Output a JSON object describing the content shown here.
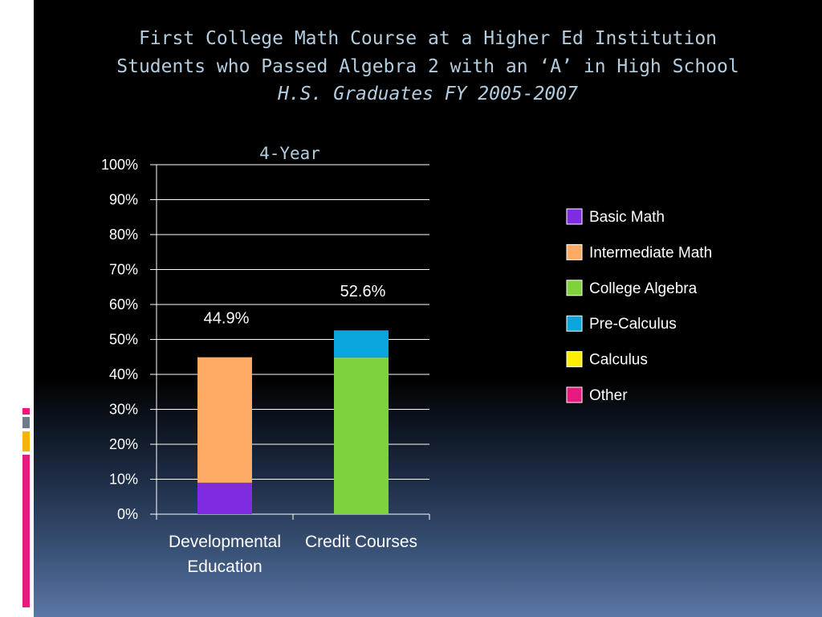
{
  "slide": {
    "title_line1": "First College Math Course at a Higher Ed Institution",
    "title_line2": "Students who Passed Algebra 2 with an ‘A’ in High School",
    "title_line3": "H.S. Graduates FY 2005-2007",
    "accent_colors": [
      "#e8197f",
      "#6f7b8a",
      "#f2b705",
      "#e8197f"
    ]
  },
  "chart_data": {
    "type": "bar",
    "stacked": true,
    "title": "4-Year",
    "categories": [
      [
        "Developmental",
        "Education"
      ],
      [
        "Credit Courses"
      ]
    ],
    "series": [
      {
        "name": "Basic Math",
        "color": "#7f2be0",
        "values": [
          9,
          0
        ]
      },
      {
        "name": "Intermediate Math",
        "color": "#ffab66",
        "values": [
          35.9,
          0
        ]
      },
      {
        "name": "College Algebra",
        "color": "#7ed23c",
        "values": [
          0,
          44.9
        ]
      },
      {
        "name": "Pre-Calculus",
        "color": "#0aa5dc",
        "values": [
          0,
          7.7
        ]
      },
      {
        "name": "Calculus",
        "color": "#ffee00",
        "values": [
          0,
          0
        ]
      },
      {
        "name": "Other",
        "color": "#e8197f",
        "values": [
          0,
          0
        ]
      }
    ],
    "totals": [
      "44.9%",
      "52.6%"
    ],
    "yticks": [
      "0%",
      "10%",
      "20%",
      "30%",
      "40%",
      "50%",
      "60%",
      "70%",
      "80%",
      "90%",
      "100%"
    ],
    "ylim": [
      0,
      100
    ],
    "grid": true,
    "legend_position": "right"
  }
}
